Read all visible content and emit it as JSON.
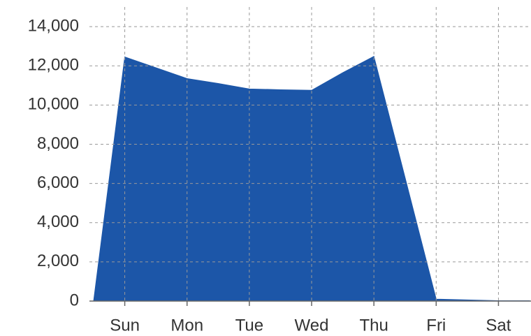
{
  "chart_data": {
    "type": "area",
    "categories": [
      null,
      "Sun",
      null,
      "Mon",
      null,
      "Tue",
      null,
      "Wed",
      null,
      "Thu",
      null,
      "Fri",
      null,
      "Sat",
      null
    ],
    "values": [
      0,
      12450,
      11900,
      11350,
      11100,
      10820,
      10780,
      10750,
      11650,
      12480,
      6300,
      100,
      60,
      20,
      20
    ],
    "color": "#1c56a8",
    "ylim": [
      0,
      15000
    ],
    "yticks": [
      0,
      {
        "value": 2000,
        "label": "2,000"
      },
      {
        "value": 4000,
        "label": "4,000"
      },
      {
        "value": 6000,
        "label": "6,000"
      },
      {
        "value": 8000,
        "label": "8,000"
      },
      {
        "value": 10000,
        "label": "10,000"
      },
      {
        "value": 12000,
        "label": "12,000"
      },
      {
        "value": 14000,
        "label": "14,000"
      }
    ],
    "grid": true
  }
}
